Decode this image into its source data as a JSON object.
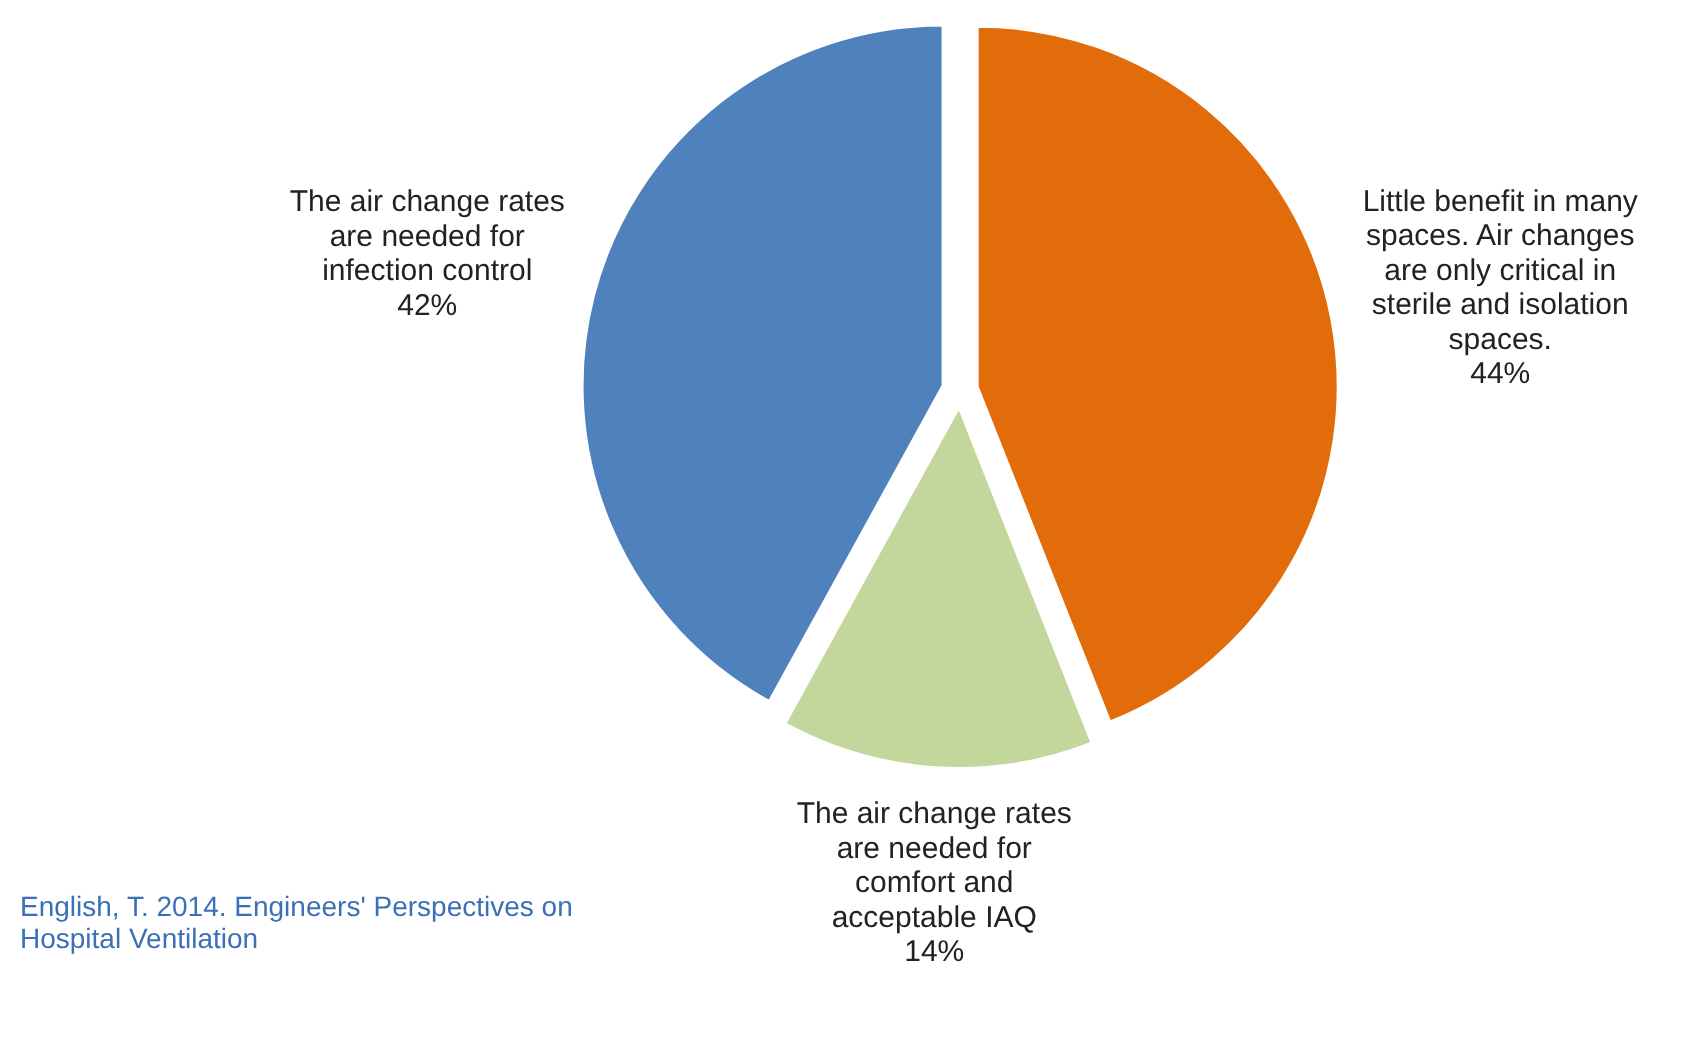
{
  "chart_data": {
    "type": "pie",
    "categories": [
      "Little benefit in many spaces. Air changes are only critical in sterile and isolation spaces.",
      "The air change rates are needed for comfort and acceptable IAQ",
      "The air change rates are needed for infection control"
    ],
    "values": [
      44,
      14,
      42
    ],
    "colors": [
      "#e36c0a",
      "#c3d69b",
      "#4f81bd"
    ],
    "value_labels": [
      "44%",
      "14%",
      "42%"
    ],
    "legend": false,
    "annotations": [
      "English, T. 2014. Engineers' Perspectives on Hospital Ventilation"
    ]
  }
}
